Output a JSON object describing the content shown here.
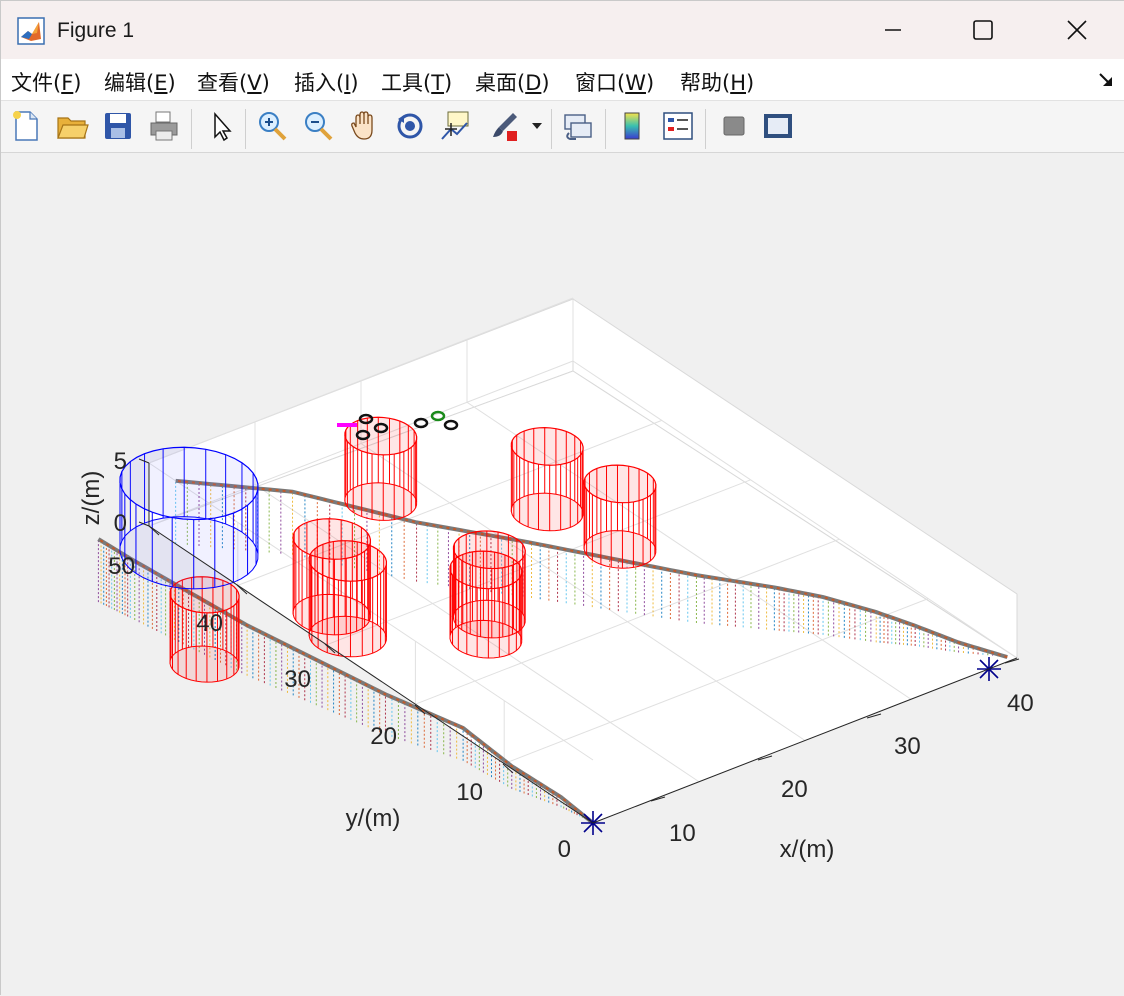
{
  "window": {
    "title": "Figure 1"
  },
  "menubar": {
    "items": [
      {
        "label": "文件(",
        "key": "F",
        "suffix": ")"
      },
      {
        "label": "编辑(",
        "key": "E",
        "suffix": ")"
      },
      {
        "label": "查看(",
        "key": "V",
        "suffix": ")"
      },
      {
        "label": "插入(",
        "key": "I",
        "suffix": ")"
      },
      {
        "label": "工具(",
        "key": "T",
        "suffix": ")"
      },
      {
        "label": "桌面(",
        "key": "D",
        "suffix": ")"
      },
      {
        "label": "窗口(",
        "key": "W",
        "suffix": ")"
      },
      {
        "label": "帮助(",
        "key": "H",
        "suffix": ")"
      }
    ]
  },
  "toolbar": {
    "buttons": [
      "new-figure-icon",
      "open-file-icon",
      "save-icon",
      "print-icon",
      "edit-plot-arrow-icon",
      "zoom-in-icon",
      "zoom-out-icon",
      "pan-hand-icon",
      "rotate-3d-icon",
      "data-cursor-icon",
      "brush-icon",
      "brush-dropdown-icon",
      "link-plot-icon",
      "colorbar-icon",
      "legend-icon",
      "hide-plot-tools-icon",
      "show-plot-tools-icon"
    ]
  },
  "chart_data": {
    "type": "line",
    "view": "3d",
    "xlabel": "x/(m)",
    "ylabel": "y/(m)",
    "zlabel": "z/(m)",
    "xlim": [
      0,
      40
    ],
    "ylim": [
      0,
      50
    ],
    "zlim": [
      0,
      5
    ],
    "xticks": [
      "10",
      "20",
      "30",
      "40"
    ],
    "yticks": [
      "0",
      "10",
      "20",
      "30",
      "40",
      "50"
    ],
    "zticks": [
      "0",
      "5"
    ],
    "grid": true,
    "obstacles": {
      "color": "#ff0000",
      "shape": "cylinder"
    },
    "goal_region": {
      "color": "#0000ff",
      "shape": "cylinder"
    },
    "start_markers": {
      "marker": "*",
      "color": "#00008b"
    },
    "series": [
      {
        "color": "#7a7a7a"
      },
      {
        "color": "#7a7a7a"
      }
    ]
  }
}
